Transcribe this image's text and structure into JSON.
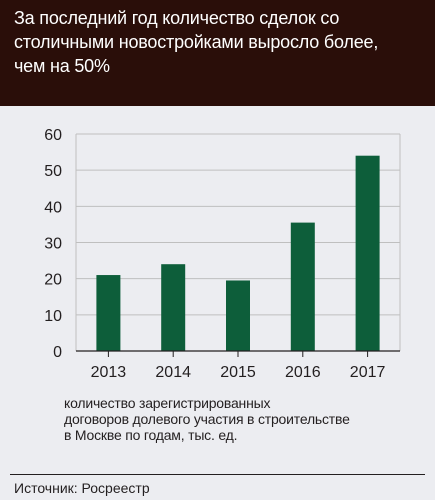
{
  "header": {
    "title": "За последний год количество сделок со\nстоличными новостройками выросло более,\nчем на 50%"
  },
  "colors": {
    "header_bg": "#2a0e09",
    "background": "#ecedf1",
    "bar": "#0d5e3a",
    "axis": "#231f20"
  },
  "chart_data": {
    "type": "bar",
    "title": "За последний год количество сделок со столичными новостройками выросло более, чем на 50%",
    "categories": [
      "2013",
      "2014",
      "2015",
      "2016",
      "2017"
    ],
    "values": [
      21,
      24,
      19.5,
      35.5,
      54
    ],
    "xlabel": "",
    "ylabel": "",
    "ylim": [
      0,
      60
    ],
    "yticks": [
      "0",
      "10",
      "20",
      "30",
      "40",
      "50",
      "60"
    ],
    "grid": true,
    "legend": false
  },
  "caption": "количество зарегистрированных\nдоговоров долевого участия в строительстве\nв Москве по годам, тыс. ед.",
  "source": "Источник: Росреестр"
}
